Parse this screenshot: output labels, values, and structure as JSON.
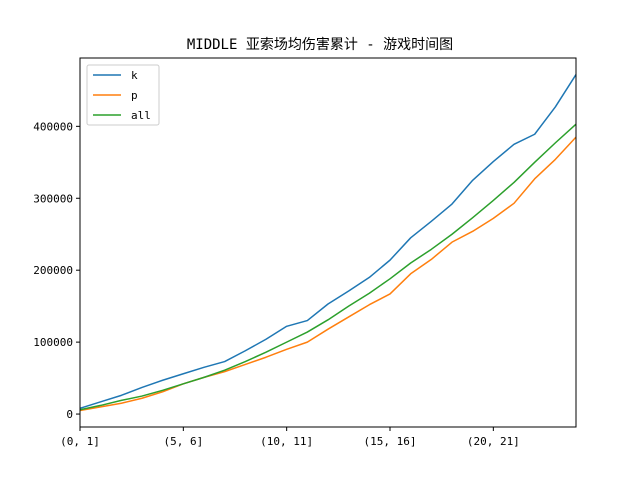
{
  "chart_data": {
    "type": "line",
    "title": "MIDDLE 亚索场均伤害累计 - 游戏时间图",
    "xlabel": "",
    "ylabel": "",
    "x_tick_labels": [
      "(0, 1]",
      "(5, 6]",
      "(10, 11]",
      "(15, 16]",
      "(20, 21]"
    ],
    "x_tick_positions": [
      0,
      5,
      10,
      15,
      20
    ],
    "x": [
      0,
      1,
      2,
      3,
      4,
      5,
      6,
      7,
      8,
      9,
      10,
      11,
      12,
      13,
      14,
      15,
      16,
      17,
      18,
      19,
      20,
      21,
      22,
      23,
      24
    ],
    "xlim": [
      0,
      24
    ],
    "ylim": [
      -18000,
      495000
    ],
    "y_ticks": [
      0,
      100000,
      200000,
      300000,
      400000
    ],
    "y_tick_labels": [
      "0",
      "100000",
      "200000",
      "300000",
      "400000"
    ],
    "grid": false,
    "legend_position": "upper-left",
    "series": [
      {
        "name": "k",
        "color": "#1f77b4",
        "values": [
          8000,
          17000,
          26000,
          37000,
          47000,
          56000,
          65000,
          73000,
          88000,
          104000,
          122000,
          130000,
          153000,
          171000,
          190000,
          214000,
          245000,
          268000,
          292000,
          325000,
          351000,
          375000,
          389000,
          427000,
          472000
        ]
      },
      {
        "name": "p",
        "color": "#ff7f0e",
        "values": [
          5000,
          10000,
          15000,
          22000,
          31000,
          42000,
          51000,
          59000,
          69000,
          79000,
          90000,
          100000,
          118000,
          135000,
          152000,
          167000,
          195000,
          215000,
          239000,
          254000,
          272000,
          293000,
          327000,
          354000,
          385000
        ]
      },
      {
        "name": "all",
        "color": "#2ca02c",
        "values": [
          6000,
          12000,
          19000,
          25000,
          33000,
          42000,
          51000,
          61000,
          73000,
          86000,
          100000,
          114000,
          131000,
          150000,
          168000,
          188000,
          210000,
          229000,
          250000,
          273000,
          297000,
          322000,
          350000,
          377000,
          403000
        ]
      }
    ]
  }
}
